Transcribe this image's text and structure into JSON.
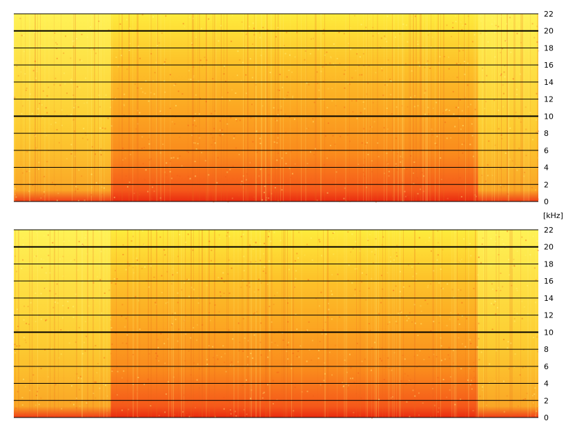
{
  "chart_data": [
    {
      "type": "heatmap",
      "channel": "top",
      "ylabel": "",
      "ylim": [
        0,
        22
      ],
      "y_ticks": [
        "0",
        "2",
        "4",
        "6",
        "8",
        "10",
        "12",
        "14",
        "16",
        "18",
        "20",
        "22"
      ],
      "grid": true,
      "colormap": [
        "#e8220e",
        "#f55a12",
        "#fb9a1a",
        "#fdc224",
        "#ffe23a",
        "#fffb5c"
      ],
      "quieter_time_ranges_fraction": [
        [
          0.0,
          0.185
        ],
        [
          0.885,
          1.0
        ]
      ]
    },
    {
      "type": "heatmap",
      "channel": "bottom",
      "ylabel": "",
      "ylim": [
        0,
        22
      ],
      "y_ticks": [
        "0",
        "2",
        "4",
        "6",
        "8",
        "10",
        "12",
        "14",
        "16",
        "18",
        "20",
        "22"
      ],
      "grid": true,
      "colormap": [
        "#e8220e",
        "#f55a12",
        "#fb9a1a",
        "#fdc224",
        "#ffe23a",
        "#fffb5c"
      ],
      "quieter_time_ranges_fraction": [
        [
          0.0,
          0.185
        ],
        [
          0.885,
          1.0
        ]
      ]
    }
  ],
  "unit_label": "[kHz]",
  "colors": {
    "background": "#ffffff",
    "gridline": "#000000"
  }
}
